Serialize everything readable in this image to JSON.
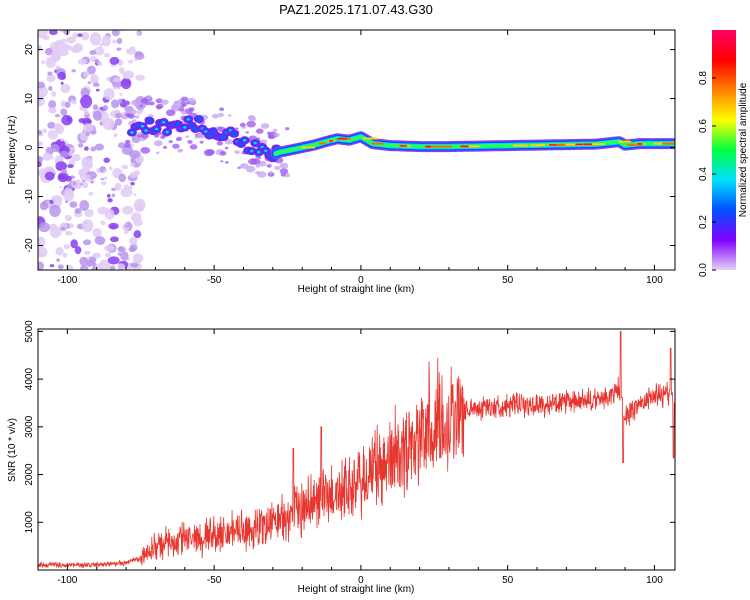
{
  "figure": {
    "title": "PAZ1.2025.171.07.43.G30"
  },
  "chart_data": [
    {
      "type": "heatmap",
      "title": "PAZ1.2025.171.07.43.G30",
      "xlabel": "Height of straight line (km)",
      "ylabel": "Frequency (Hz)",
      "xlim": [
        -110,
        107
      ],
      "ylim": [
        -25,
        24
      ],
      "xticks": [
        -100,
        -50,
        0,
        50,
        100
      ],
      "yticks": [
        -20,
        -10,
        0,
        10,
        20
      ],
      "grid": false,
      "colorbar": {
        "label": "Normalized spectral amplitude",
        "range": [
          0,
          1
        ],
        "ticks": [
          "0.0",
          "0.2",
          "0.4",
          "0.6",
          "0.8"
        ],
        "colormap": "rainbow",
        "colors": [
          "#e6d2f5",
          "#8000ff",
          "#0050ff",
          "#00e0ff",
          "#00ff40",
          "#ffff00",
          "#ff8000",
          "#ff0000",
          "#ff0066"
        ]
      },
      "ridge": {
        "x": [
          -78,
          -72,
          -66,
          -62,
          -56,
          -52,
          -46,
          -42,
          -38,
          -34,
          -30,
          -28,
          -24,
          -20,
          -16,
          -12,
          -8,
          -4,
          0,
          4,
          10,
          20,
          30,
          40,
          50,
          60,
          70,
          80,
          88,
          90,
          95,
          100,
          107
        ],
        "y": [
          4,
          4.5,
          4,
          5,
          5,
          3.5,
          3,
          2,
          0.5,
          -0.5,
          -1.5,
          -1,
          -0.5,
          0,
          0.5,
          1.2,
          1.8,
          1.5,
          2.2,
          0.8,
          0.4,
          0.2,
          0.2,
          0.3,
          0.4,
          0.5,
          0.6,
          0.7,
          1.2,
          0.5,
          0.8,
          0.8,
          0.8
        ]
      }
    },
    {
      "type": "line",
      "xlabel": "Height of straight line (km)",
      "ylabel": "SNR (10 * v/v)",
      "xlim": [
        -110,
        107
      ],
      "ylim": [
        0,
        5050
      ],
      "xticks": [
        -100,
        -50,
        0,
        50,
        100
      ],
      "yticks": [
        1000,
        2000,
        3000,
        4000,
        5000
      ],
      "grid": false,
      "series": [
        {
          "color": "#e8352e",
          "trend": {
            "x": [
              -110,
              -100,
              -90,
              -80,
              -75,
              -70,
              -60,
              -50,
              -40,
              -30,
              -25,
              -20,
              -15,
              -10,
              -5,
              0,
              5,
              10,
              15,
              20,
              25,
              30,
              35,
              40,
              50,
              60,
              70,
              80,
              85,
              88,
              90,
              95,
              100,
              105,
              107
            ],
            "y": [
              120,
              100,
              110,
              150,
              250,
              500,
              650,
              750,
              800,
              1000,
              1100,
              1300,
              1500,
              1550,
              1700,
              1800,
              2100,
              2350,
              2600,
              2800,
              3050,
              3200,
              3350,
              3400,
              3450,
              3450,
              3500,
              3550,
              3650,
              3800,
              3200,
              3500,
              3650,
              3700,
              3500
            ]
          },
          "peaks": [
            {
              "x": 88.5,
              "y": 5000
            },
            {
              "x": 89.3,
              "y": 2250
            },
            {
              "x": 105.5,
              "y": 4650
            },
            {
              "x": 106.5,
              "y": 2350
            },
            {
              "x": -13.5,
              "y": 3000
            },
            {
              "x": -23.0,
              "y": 2550
            }
          ]
        }
      ]
    }
  ]
}
